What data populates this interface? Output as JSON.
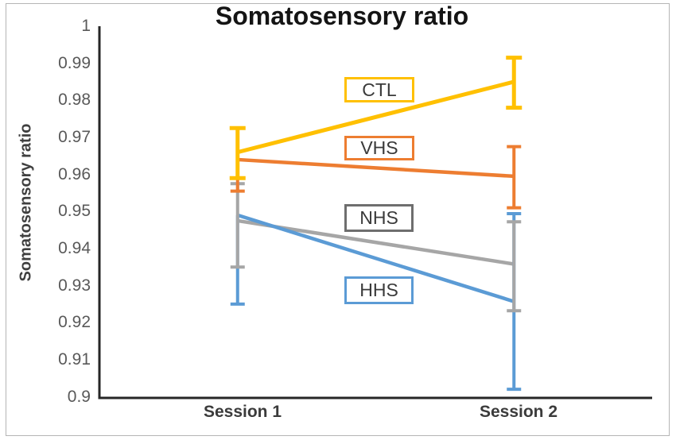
{
  "chart_data": {
    "type": "line",
    "title": "Somatosensory ratio",
    "ylabel": "Somatosensory ratio",
    "categories": [
      "Session 1",
      "Session 2"
    ],
    "ylim": [
      0.9,
      1.0
    ],
    "ytick_step": 0.01,
    "ytick_labels": [
      "1",
      "0.99",
      "0.98",
      "0.97",
      "0.96",
      "0.95",
      "0.94",
      "0.93",
      "0.92",
      "0.91",
      "0.9"
    ],
    "grid": false,
    "legend_position": "data-label-boxes-inside-plot",
    "axis_color": "#262626",
    "tick_label_color": "#595959",
    "series": [
      {
        "name": "CTL",
        "color": "#FFC000",
        "values": [
          0.966,
          0.985
        ],
        "err_low": [
          0.959,
          0.978
        ],
        "err_high": [
          0.9725,
          0.9915
        ]
      },
      {
        "name": "VHS",
        "color": "#ED7D31",
        "values": [
          0.964,
          0.9595
        ],
        "err_low": [
          0.9555,
          0.951
        ],
        "err_high": [
          0.9725,
          0.9675
        ]
      },
      {
        "name": "NHS",
        "color": "#A6A6A6",
        "box_color": "#6E6E6E",
        "values": [
          0.9475,
          0.9358
        ],
        "err_low": [
          0.935,
          0.9232
        ],
        "err_high": [
          0.9575,
          0.9472
        ]
      },
      {
        "name": "HHS",
        "color": "#5B9BD5",
        "values": [
          0.949,
          0.9257
        ],
        "err_low": [
          0.925,
          0.902
        ],
        "err_high": [
          0.949,
          0.9494
        ]
      }
    ]
  }
}
